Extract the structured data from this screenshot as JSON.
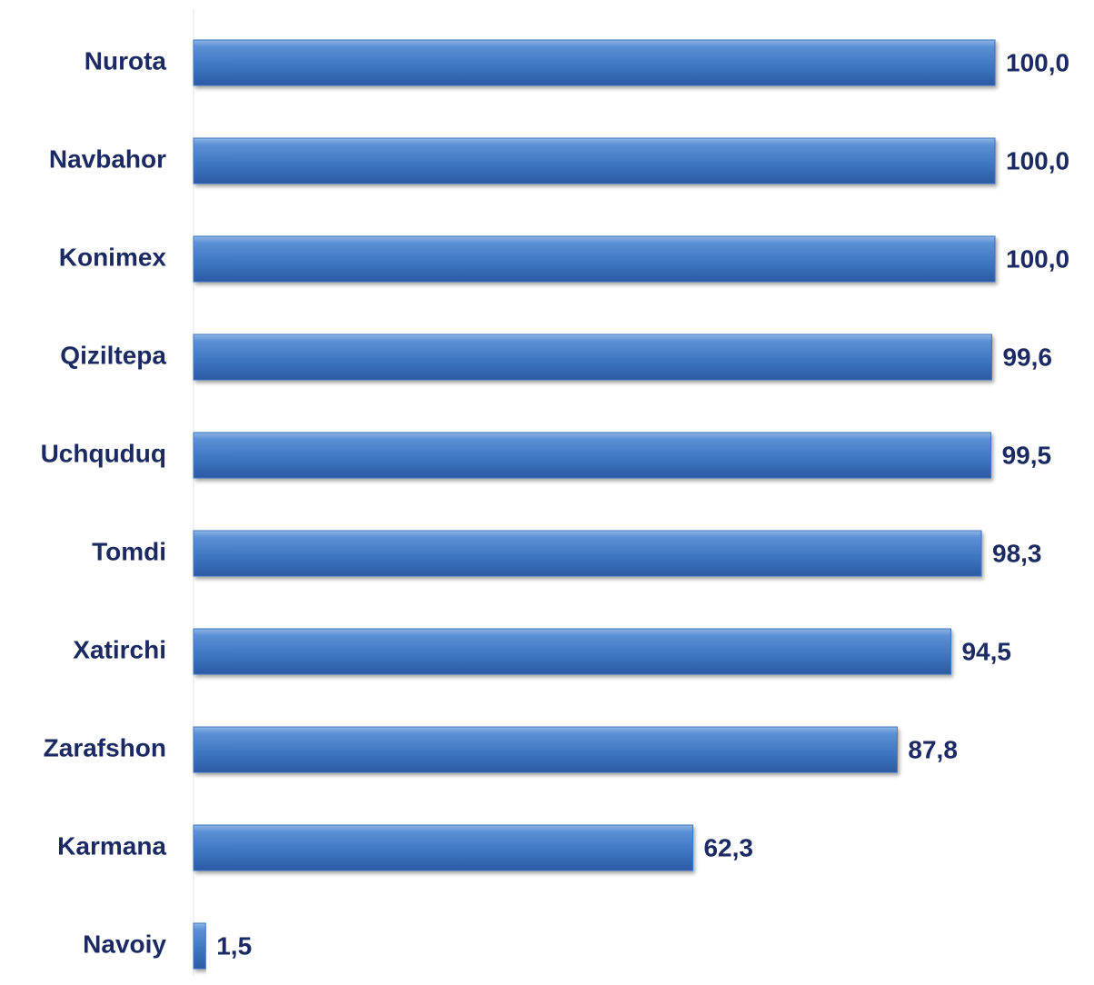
{
  "chart_data": {
    "type": "bar",
    "orientation": "horizontal",
    "categories": [
      "Nurota",
      "Navbahor",
      "Konimex",
      "Qiziltepa",
      "Uchquduq",
      "Tomdi",
      "Xatirchi",
      "Zarafshon",
      "Karmana",
      "Navoiy"
    ],
    "values": [
      100.0,
      100.0,
      100.0,
      99.6,
      99.5,
      98.3,
      94.5,
      87.8,
      62.3,
      1.5
    ],
    "value_labels": [
      "100,0",
      "100,0",
      "100,0",
      "99,6",
      "99,5",
      "98,3",
      "94,5",
      "87,8",
      "62,3",
      "1,5"
    ],
    "color": "#3d74c0",
    "xlim": [
      0,
      100
    ]
  }
}
